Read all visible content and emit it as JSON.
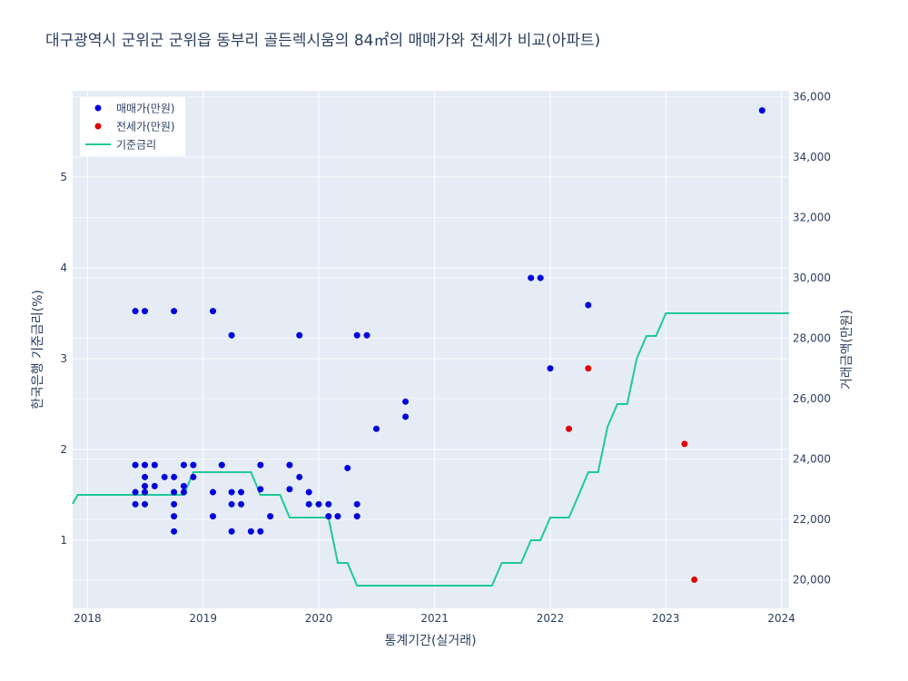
{
  "chart_data": {
    "type": "scatter",
    "title": "대구광역시 군위군 군위읍 동부리 골든렉시움의 84㎡의 매매가와 전세가 비교(아파트)",
    "xlabel": "통계기간(실거래)",
    "ylabel_left": "한국은행 기준금리(%)",
    "ylabel_right": "거래금액(만원)",
    "x_range": [
      "2017-11-15",
      "2024-01-25"
    ],
    "x_ticks": [
      "2018",
      "2019",
      "2020",
      "2021",
      "2022",
      "2023",
      "2024"
    ],
    "y_left_range": [
      0.25,
      5.95
    ],
    "y_left_ticks": [
      "1",
      "2",
      "3",
      "4",
      "5"
    ],
    "y_right_range": [
      19050,
      36200
    ],
    "y_right_ticks": [
      "20,000",
      "22,000",
      "24,000",
      "26,000",
      "28,000",
      "30,000",
      "32,000",
      "34,000",
      "36,000"
    ],
    "legend_position": "top-left",
    "grid": true,
    "colors": {
      "sale": "#0000dd",
      "jeonse": "#dd0000",
      "rate": "#1ec997",
      "plot_bg": "#e5ecf6",
      "grid": "#ffffff"
    },
    "series": [
      {
        "name": "매매가(만원)",
        "axis": "right",
        "mode": "markers",
        "points": [
          [
            "2018-06-01",
            28900
          ],
          [
            "2018-06-01",
            23800
          ],
          [
            "2018-06-01",
            22900
          ],
          [
            "2018-06-01",
            22500
          ],
          [
            "2018-07-01",
            28900
          ],
          [
            "2018-07-01",
            23800
          ],
          [
            "2018-07-01",
            23400
          ],
          [
            "2018-07-01",
            23100
          ],
          [
            "2018-07-01",
            22900
          ],
          [
            "2018-07-01",
            22500
          ],
          [
            "2018-08-01",
            23800
          ],
          [
            "2018-08-01",
            23100
          ],
          [
            "2018-09-01",
            23400
          ],
          [
            "2018-10-01",
            28900
          ],
          [
            "2018-10-01",
            23400
          ],
          [
            "2018-10-01",
            22900
          ],
          [
            "2018-10-01",
            22500
          ],
          [
            "2018-10-01",
            22100
          ],
          [
            "2018-10-01",
            21600
          ],
          [
            "2018-11-01",
            23800
          ],
          [
            "2018-11-01",
            23100
          ],
          [
            "2018-11-01",
            22900
          ],
          [
            "2018-12-01",
            23800
          ],
          [
            "2018-12-01",
            23400
          ],
          [
            "2019-02-01",
            28900
          ],
          [
            "2019-02-01",
            22900
          ],
          [
            "2019-02-01",
            22100
          ],
          [
            "2019-03-01",
            23800
          ],
          [
            "2019-04-01",
            28100
          ],
          [
            "2019-04-01",
            22900
          ],
          [
            "2019-04-01",
            22500
          ],
          [
            "2019-04-01",
            21600
          ],
          [
            "2019-05-01",
            22900
          ],
          [
            "2019-05-01",
            22500
          ],
          [
            "2019-06-01",
            21600
          ],
          [
            "2019-07-01",
            23800
          ],
          [
            "2019-07-01",
            23000
          ],
          [
            "2019-07-01",
            21600
          ],
          [
            "2019-08-01",
            22100
          ],
          [
            "2019-10-01",
            23800
          ],
          [
            "2019-10-01",
            23000
          ],
          [
            "2019-11-01",
            28100
          ],
          [
            "2019-11-01",
            23400
          ],
          [
            "2019-12-01",
            22900
          ],
          [
            "2019-12-01",
            22500
          ],
          [
            "2020-01-01",
            22500
          ],
          [
            "2020-02-01",
            22500
          ],
          [
            "2020-02-01",
            22100
          ],
          [
            "2020-03-01",
            22100
          ],
          [
            "2020-04-01",
            23700
          ],
          [
            "2020-05-01",
            28100
          ],
          [
            "2020-05-01",
            22500
          ],
          [
            "2020-05-01",
            22100
          ],
          [
            "2020-06-01",
            28100
          ],
          [
            "2020-07-01",
            25000
          ],
          [
            "2020-10-01",
            25900
          ],
          [
            "2020-10-01",
            25400
          ],
          [
            "2021-11-01",
            30000
          ],
          [
            "2021-12-01",
            30000
          ],
          [
            "2022-01-01",
            27000
          ],
          [
            "2022-05-01",
            29100
          ],
          [
            "2023-11-01",
            35550
          ]
        ]
      },
      {
        "name": "전세가(만원)",
        "axis": "right",
        "mode": "markers",
        "points": [
          [
            "2022-03-01",
            25000
          ],
          [
            "2022-05-01",
            27000
          ],
          [
            "2023-03-01",
            24500
          ],
          [
            "2023-04-01",
            20000
          ]
        ]
      },
      {
        "name": "기준금리",
        "axis": "left",
        "mode": "lines",
        "points": [
          [
            "2017-11-15",
            1.4
          ],
          [
            "2017-12-01",
            1.5
          ],
          [
            "2018-11-01",
            1.5
          ],
          [
            "2018-12-01",
            1.75
          ],
          [
            "2019-06-01",
            1.75
          ],
          [
            "2019-07-01",
            1.5
          ],
          [
            "2019-09-01",
            1.5
          ],
          [
            "2019-10-01",
            1.25
          ],
          [
            "2020-02-01",
            1.25
          ],
          [
            "2020-03-01",
            0.75
          ],
          [
            "2020-04-01",
            0.75
          ],
          [
            "2020-05-01",
            0.5
          ],
          [
            "2021-07-01",
            0.5
          ],
          [
            "2021-08-01",
            0.75
          ],
          [
            "2021-10-01",
            0.75
          ],
          [
            "2021-11-01",
            1.0
          ],
          [
            "2021-12-01",
            1.0
          ],
          [
            "2022-01-01",
            1.25
          ],
          [
            "2022-03-01",
            1.25
          ],
          [
            "2022-04-01",
            1.5
          ],
          [
            "2022-05-01",
            1.75
          ],
          [
            "2022-06-01",
            1.75
          ],
          [
            "2022-07-01",
            2.25
          ],
          [
            "2022-08-01",
            2.5
          ],
          [
            "2022-09-01",
            2.5
          ],
          [
            "2022-10-01",
            3.0
          ],
          [
            "2022-11-01",
            3.25
          ],
          [
            "2022-12-01",
            3.25
          ],
          [
            "2023-01-01",
            3.5
          ],
          [
            "2024-01-25",
            3.5
          ]
        ]
      }
    ]
  }
}
